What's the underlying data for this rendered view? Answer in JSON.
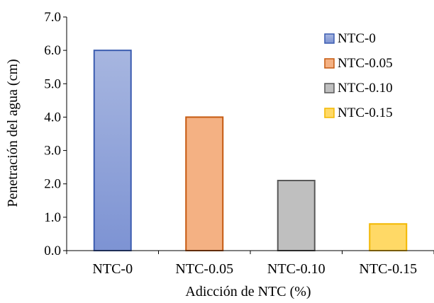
{
  "chart_data": {
    "type": "bar",
    "title": "",
    "xlabel": "Adicción de NTC (%)",
    "ylabel": "Penetración del agua (cm)",
    "ylim": [
      0,
      7
    ],
    "yticks": [
      "0.0",
      "1.0",
      "2.0",
      "3.0",
      "4.0",
      "5.0",
      "6.0",
      "7.0"
    ],
    "grid": false,
    "legend_position": "top-right",
    "categories": [
      "NTC-0",
      "NTC-0.05",
      "NTC-0.10",
      "NTC-0.15"
    ],
    "series": [
      {
        "name": "NTC-0",
        "values": [
          6.0,
          null,
          null,
          null
        ],
        "fill_top": "#a7b6e0",
        "fill_bottom": "#7d93d3",
        "stroke": "#3b5cb0"
      },
      {
        "name": "NTC-0.05",
        "values": [
          null,
          4.0,
          null,
          null
        ],
        "fill_top": "#f4b183",
        "fill_bottom": "#f4b183",
        "stroke": "#c55a11"
      },
      {
        "name": "NTC-0.10",
        "values": [
          null,
          null,
          2.1,
          null
        ],
        "fill_top": "#bfbfbf",
        "fill_bottom": "#bfbfbf",
        "stroke": "#595959"
      },
      {
        "name": "NTC-0.15",
        "values": [
          null,
          null,
          null,
          0.8
        ],
        "fill_top": "#ffd966",
        "fill_bottom": "#ffd966",
        "stroke": "#f2b700"
      }
    ]
  }
}
